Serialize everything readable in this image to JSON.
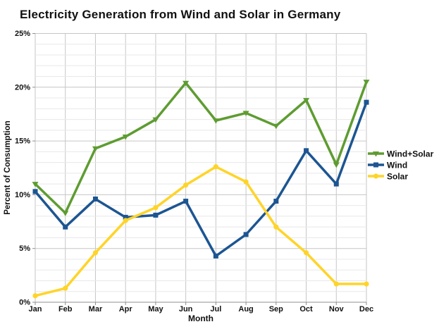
{
  "chart_data": {
    "type": "line",
    "title": "Electricity Generation from Wind and Solar in Germany",
    "xlabel": "Month",
    "ylabel": "Percent of Consumption",
    "categories": [
      "Jan",
      "Feb",
      "Mar",
      "Apr",
      "May",
      "Jun",
      "Jul",
      "Aug",
      "Sep",
      "Oct",
      "Nov",
      "Dec"
    ],
    "series": [
      {
        "name": "Wind+Solar",
        "color": "#5e9c31",
        "marker": "triangle-down",
        "values": [
          11.0,
          8.3,
          14.3,
          15.4,
          17.0,
          20.4,
          16.9,
          17.6,
          16.4,
          18.8,
          12.8,
          20.5
        ]
      },
      {
        "name": "Wind",
        "color": "#1c5592",
        "marker": "square",
        "values": [
          10.3,
          7.0,
          9.6,
          7.9,
          8.1,
          9.4,
          4.3,
          6.3,
          9.4,
          14.1,
          11.0,
          18.6
        ]
      },
      {
        "name": "Solar",
        "color": "#ffd428",
        "marker": "circle",
        "values": [
          0.6,
          1.3,
          4.6,
          7.6,
          8.8,
          10.9,
          12.6,
          11.2,
          7.0,
          4.6,
          1.7,
          1.7
        ]
      }
    ],
    "ylim": [
      0,
      25
    ],
    "y_major_step": 5,
    "y_minor_step": 1,
    "ytick_labels": [
      "0%",
      "5%",
      "10%",
      "15%",
      "20%",
      "25%"
    ],
    "grid": true,
    "legend_position": "right",
    "style": {
      "background": "#ffffff",
      "grid_minor": "#e8e8e8",
      "grid_major": "#c6c6c6",
      "axis_line": "#8f8f8f",
      "text_color": "#111111",
      "line_width": 3.5
    }
  }
}
